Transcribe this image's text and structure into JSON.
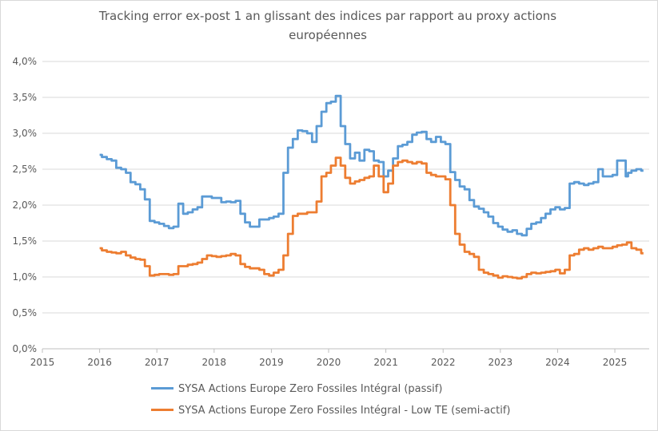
{
  "chart_data": {
    "type": "line",
    "title": "Tracking error ex-post 1 an glissant des indices par rapport au proxy actions européennes",
    "xlabel": "",
    "ylabel": "",
    "x_ticks": [
      "2015",
      "2016",
      "2017",
      "2018",
      "2019",
      "2020",
      "2021",
      "2022",
      "2023",
      "2024",
      "2025"
    ],
    "y_ticks": [
      "0,0%",
      "0,5%",
      "1,0%",
      "1,5%",
      "2,0%",
      "2,5%",
      "3,0%",
      "3,5%",
      "4,0%"
    ],
    "xlim": [
      2015,
      2025.6
    ],
    "ylim": [
      0,
      4
    ],
    "grid": "horizontal",
    "legend_position": "bottom",
    "series": [
      {
        "name": "SYSA Actions Europe Zero Fossiles Intégral (passif)",
        "color": "#5b9bd5",
        "points": [
          [
            2016.0,
            2.7
          ],
          [
            2016.08,
            2.67
          ],
          [
            2016.17,
            2.64
          ],
          [
            2016.25,
            2.62
          ],
          [
            2016.33,
            2.52
          ],
          [
            2016.42,
            2.5
          ],
          [
            2016.5,
            2.45
          ],
          [
            2016.58,
            2.32
          ],
          [
            2016.67,
            2.29
          ],
          [
            2016.75,
            2.22
          ],
          [
            2016.83,
            2.08
          ],
          [
            2016.92,
            1.78
          ],
          [
            2017.0,
            1.76
          ],
          [
            2017.08,
            1.74
          ],
          [
            2017.17,
            1.71
          ],
          [
            2017.25,
            1.68
          ],
          [
            2017.33,
            1.7
          ],
          [
            2017.42,
            2.02
          ],
          [
            2017.5,
            1.88
          ],
          [
            2017.58,
            1.9
          ],
          [
            2017.67,
            1.94
          ],
          [
            2017.75,
            1.97
          ],
          [
            2017.83,
            2.12
          ],
          [
            2017.92,
            2.12
          ],
          [
            2018.0,
            2.1
          ],
          [
            2018.08,
            2.1
          ],
          [
            2018.17,
            2.04
          ],
          [
            2018.25,
            2.05
          ],
          [
            2018.33,
            2.04
          ],
          [
            2018.42,
            2.06
          ],
          [
            2018.5,
            1.88
          ],
          [
            2018.58,
            1.76
          ],
          [
            2018.67,
            1.7
          ],
          [
            2018.75,
            1.7
          ],
          [
            2018.83,
            1.8
          ],
          [
            2018.92,
            1.8
          ],
          [
            2019.0,
            1.82
          ],
          [
            2019.08,
            1.84
          ],
          [
            2019.17,
            1.88
          ],
          [
            2019.25,
            2.45
          ],
          [
            2019.33,
            2.8
          ],
          [
            2019.42,
            2.92
          ],
          [
            2019.5,
            3.04
          ],
          [
            2019.58,
            3.03
          ],
          [
            2019.67,
            3.0
          ],
          [
            2019.75,
            2.88
          ],
          [
            2019.83,
            3.1
          ],
          [
            2019.92,
            3.3
          ],
          [
            2020.0,
            3.42
          ],
          [
            2020.08,
            3.44
          ],
          [
            2020.17,
            3.52
          ],
          [
            2020.25,
            3.1
          ],
          [
            2020.33,
            2.85
          ],
          [
            2020.42,
            2.65
          ],
          [
            2020.5,
            2.73
          ],
          [
            2020.58,
            2.62
          ],
          [
            2020.67,
            2.77
          ],
          [
            2020.75,
            2.75
          ],
          [
            2020.83,
            2.62
          ],
          [
            2020.92,
            2.6
          ],
          [
            2021.0,
            2.4
          ],
          [
            2021.08,
            2.48
          ],
          [
            2021.17,
            2.65
          ],
          [
            2021.25,
            2.82
          ],
          [
            2021.33,
            2.84
          ],
          [
            2021.42,
            2.88
          ],
          [
            2021.5,
            2.98
          ],
          [
            2021.58,
            3.01
          ],
          [
            2021.67,
            3.02
          ],
          [
            2021.75,
            2.92
          ],
          [
            2021.83,
            2.88
          ],
          [
            2021.92,
            2.95
          ],
          [
            2022.0,
            2.88
          ],
          [
            2022.08,
            2.85
          ],
          [
            2022.17,
            2.46
          ],
          [
            2022.25,
            2.35
          ],
          [
            2022.33,
            2.26
          ],
          [
            2022.42,
            2.22
          ],
          [
            2022.5,
            2.07
          ],
          [
            2022.58,
            1.98
          ],
          [
            2022.67,
            1.95
          ],
          [
            2022.75,
            1.9
          ],
          [
            2022.83,
            1.84
          ],
          [
            2022.92,
            1.75
          ],
          [
            2023.0,
            1.7
          ],
          [
            2023.08,
            1.66
          ],
          [
            2023.17,
            1.63
          ],
          [
            2023.25,
            1.65
          ],
          [
            2023.33,
            1.6
          ],
          [
            2023.42,
            1.58
          ],
          [
            2023.5,
            1.67
          ],
          [
            2023.58,
            1.74
          ],
          [
            2023.67,
            1.76
          ],
          [
            2023.75,
            1.82
          ],
          [
            2023.83,
            1.88
          ],
          [
            2023.92,
            1.94
          ],
          [
            2024.0,
            1.97
          ],
          [
            2024.08,
            1.94
          ],
          [
            2024.17,
            1.96
          ],
          [
            2024.25,
            2.3
          ],
          [
            2024.33,
            2.32
          ],
          [
            2024.42,
            2.3
          ],
          [
            2024.5,
            2.28
          ],
          [
            2024.58,
            2.3
          ],
          [
            2024.67,
            2.32
          ],
          [
            2024.75,
            2.5
          ],
          [
            2024.83,
            2.4
          ],
          [
            2024.92,
            2.4
          ],
          [
            2025.0,
            2.42
          ],
          [
            2025.08,
            2.62
          ],
          [
            2025.17,
            2.62
          ],
          [
            2025.21,
            2.4
          ],
          [
            2025.25,
            2.45
          ],
          [
            2025.33,
            2.48
          ],
          [
            2025.42,
            2.5
          ],
          [
            2025.5,
            2.48
          ]
        ]
      },
      {
        "name": "SYSA Actions Europe Zero Fossiles Intégral - Low TE (semi-actif)",
        "color": "#ed7d31",
        "points": [
          [
            2016.0,
            1.4
          ],
          [
            2016.08,
            1.37
          ],
          [
            2016.17,
            1.35
          ],
          [
            2016.25,
            1.34
          ],
          [
            2016.33,
            1.33
          ],
          [
            2016.42,
            1.35
          ],
          [
            2016.5,
            1.3
          ],
          [
            2016.58,
            1.27
          ],
          [
            2016.67,
            1.25
          ],
          [
            2016.75,
            1.24
          ],
          [
            2016.83,
            1.15
          ],
          [
            2016.92,
            1.02
          ],
          [
            2017.0,
            1.03
          ],
          [
            2017.08,
            1.04
          ],
          [
            2017.17,
            1.04
          ],
          [
            2017.25,
            1.03
          ],
          [
            2017.33,
            1.04
          ],
          [
            2017.42,
            1.15
          ],
          [
            2017.5,
            1.15
          ],
          [
            2017.58,
            1.17
          ],
          [
            2017.67,
            1.18
          ],
          [
            2017.75,
            1.2
          ],
          [
            2017.83,
            1.25
          ],
          [
            2017.92,
            1.3
          ],
          [
            2018.0,
            1.29
          ],
          [
            2018.08,
            1.28
          ],
          [
            2018.17,
            1.29
          ],
          [
            2018.25,
            1.3
          ],
          [
            2018.33,
            1.32
          ],
          [
            2018.42,
            1.3
          ],
          [
            2018.5,
            1.18
          ],
          [
            2018.58,
            1.14
          ],
          [
            2018.67,
            1.12
          ],
          [
            2018.75,
            1.12
          ],
          [
            2018.83,
            1.1
          ],
          [
            2018.92,
            1.04
          ],
          [
            2019.0,
            1.02
          ],
          [
            2019.08,
            1.06
          ],
          [
            2019.17,
            1.1
          ],
          [
            2019.25,
            1.3
          ],
          [
            2019.33,
            1.6
          ],
          [
            2019.42,
            1.85
          ],
          [
            2019.5,
            1.88
          ],
          [
            2019.58,
            1.88
          ],
          [
            2019.67,
            1.9
          ],
          [
            2019.75,
            1.9
          ],
          [
            2019.83,
            2.05
          ],
          [
            2019.92,
            2.4
          ],
          [
            2020.0,
            2.45
          ],
          [
            2020.08,
            2.55
          ],
          [
            2020.17,
            2.66
          ],
          [
            2020.25,
            2.55
          ],
          [
            2020.33,
            2.38
          ],
          [
            2020.42,
            2.3
          ],
          [
            2020.5,
            2.33
          ],
          [
            2020.58,
            2.35
          ],
          [
            2020.67,
            2.38
          ],
          [
            2020.75,
            2.4
          ],
          [
            2020.83,
            2.55
          ],
          [
            2020.92,
            2.4
          ],
          [
            2021.0,
            2.18
          ],
          [
            2021.08,
            2.3
          ],
          [
            2021.17,
            2.55
          ],
          [
            2021.25,
            2.6
          ],
          [
            2021.33,
            2.62
          ],
          [
            2021.42,
            2.6
          ],
          [
            2021.5,
            2.58
          ],
          [
            2021.58,
            2.6
          ],
          [
            2021.67,
            2.58
          ],
          [
            2021.75,
            2.45
          ],
          [
            2021.83,
            2.42
          ],
          [
            2021.92,
            2.4
          ],
          [
            2022.0,
            2.4
          ],
          [
            2022.08,
            2.36
          ],
          [
            2022.17,
            2.0
          ],
          [
            2022.25,
            1.6
          ],
          [
            2022.33,
            1.45
          ],
          [
            2022.42,
            1.35
          ],
          [
            2022.5,
            1.32
          ],
          [
            2022.58,
            1.28
          ],
          [
            2022.67,
            1.1
          ],
          [
            2022.75,
            1.06
          ],
          [
            2022.83,
            1.04
          ],
          [
            2022.92,
            1.02
          ],
          [
            2023.0,
            0.99
          ],
          [
            2023.08,
            1.01
          ],
          [
            2023.17,
            1.0
          ],
          [
            2023.25,
            0.99
          ],
          [
            2023.33,
            0.98
          ],
          [
            2023.42,
            1.0
          ],
          [
            2023.5,
            1.04
          ],
          [
            2023.58,
            1.06
          ],
          [
            2023.67,
            1.05
          ],
          [
            2023.75,
            1.06
          ],
          [
            2023.83,
            1.07
          ],
          [
            2023.92,
            1.08
          ],
          [
            2024.0,
            1.1
          ],
          [
            2024.08,
            1.05
          ],
          [
            2024.17,
            1.1
          ],
          [
            2024.25,
            1.3
          ],
          [
            2024.33,
            1.32
          ],
          [
            2024.42,
            1.38
          ],
          [
            2024.5,
            1.4
          ],
          [
            2024.58,
            1.38
          ],
          [
            2024.67,
            1.4
          ],
          [
            2024.75,
            1.42
          ],
          [
            2024.83,
            1.4
          ],
          [
            2024.92,
            1.4
          ],
          [
            2025.0,
            1.42
          ],
          [
            2025.08,
            1.44
          ],
          [
            2025.17,
            1.45
          ],
          [
            2025.25,
            1.48
          ],
          [
            2025.33,
            1.4
          ],
          [
            2025.42,
            1.38
          ],
          [
            2025.5,
            1.33
          ]
        ]
      }
    ]
  }
}
